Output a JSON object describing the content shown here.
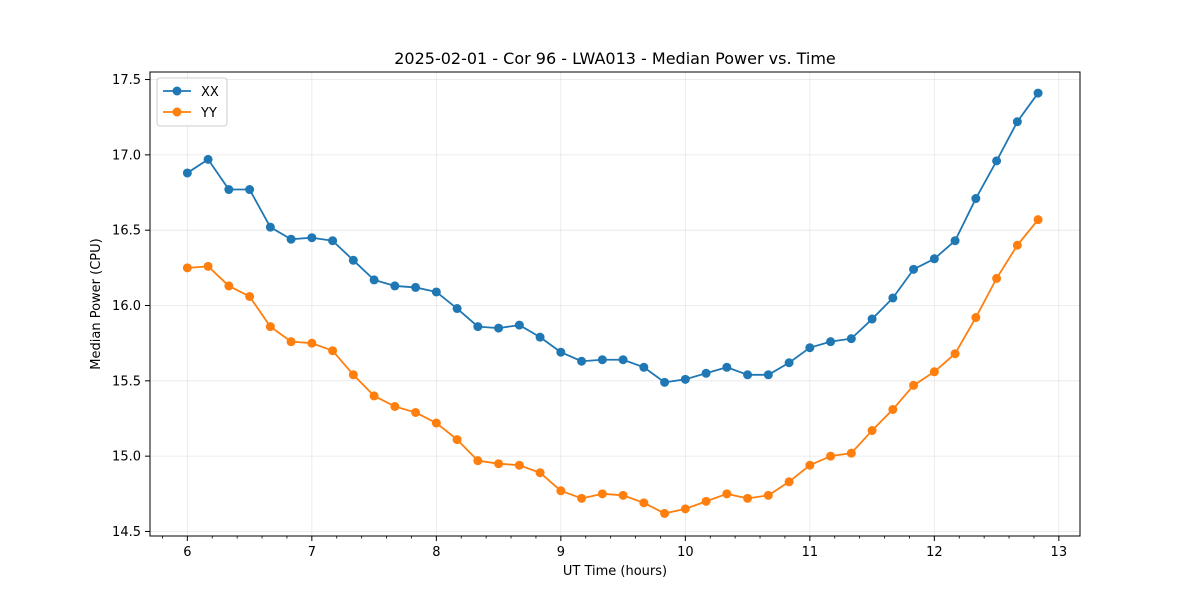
{
  "chart_data": {
    "type": "line",
    "title": "2025-02-01 - Cor 96 - LWA013 - Median Power vs. Time",
    "xlabel": "UT Time (hours)",
    "ylabel": "Median Power (CPU)",
    "xlim": [
      5.7,
      13.17
    ],
    "ylim": [
      14.47,
      17.55
    ],
    "grid": true,
    "legend_position": "top-left",
    "x_ticks": [
      6,
      7,
      8,
      9,
      10,
      11,
      12,
      13
    ],
    "x_tick_labels": [
      "6",
      "7",
      "8",
      "9",
      "10",
      "11",
      "12",
      "13"
    ],
    "y_ticks": [
      14.5,
      15.0,
      15.5,
      16.0,
      16.5,
      17.0,
      17.5
    ],
    "y_tick_labels": [
      "14.5",
      "15.0",
      "15.5",
      "16.0",
      "16.5",
      "17.0",
      "17.5"
    ],
    "x": [
      6.0,
      6.1667,
      6.3333,
      6.5,
      6.6667,
      6.8333,
      7.0,
      7.1667,
      7.3333,
      7.5,
      7.6667,
      7.8333,
      8.0,
      8.1667,
      8.3333,
      8.5,
      8.6667,
      8.8333,
      9.0,
      9.1667,
      9.3333,
      9.5,
      9.6667,
      9.8333,
      10.0,
      10.1667,
      10.3333,
      10.5,
      10.6667,
      10.8333,
      11.0,
      11.1667,
      11.3333,
      11.5,
      11.6667,
      11.8333,
      12.0,
      12.1667,
      12.3333,
      12.5,
      12.6667,
      12.8333
    ],
    "series": [
      {
        "name": "XX",
        "color": "#1f77b4",
        "values": [
          16.88,
          16.97,
          16.77,
          16.77,
          16.52,
          16.44,
          16.45,
          16.43,
          16.3,
          16.17,
          16.13,
          16.12,
          16.09,
          15.98,
          15.86,
          15.85,
          15.87,
          15.79,
          15.69,
          15.63,
          15.64,
          15.64,
          15.59,
          15.49,
          15.51,
          15.55,
          15.59,
          15.54,
          15.54,
          15.62,
          15.72,
          15.76,
          15.78,
          15.91,
          16.05,
          16.24,
          16.31,
          16.43,
          16.71,
          16.96,
          17.22,
          17.41
        ]
      },
      {
        "name": "YY",
        "color": "#ff7f0e",
        "values": [
          16.25,
          16.26,
          16.13,
          16.06,
          15.86,
          15.76,
          15.75,
          15.7,
          15.54,
          15.4,
          15.33,
          15.29,
          15.22,
          15.11,
          14.97,
          14.95,
          14.94,
          14.89,
          14.77,
          14.72,
          14.75,
          14.74,
          14.69,
          14.62,
          14.65,
          14.7,
          14.75,
          14.72,
          14.74,
          14.83,
          14.94,
          15.0,
          15.02,
          15.17,
          15.31,
          15.47,
          15.56,
          15.68,
          15.92,
          16.18,
          16.4,
          16.57
        ]
      }
    ]
  }
}
